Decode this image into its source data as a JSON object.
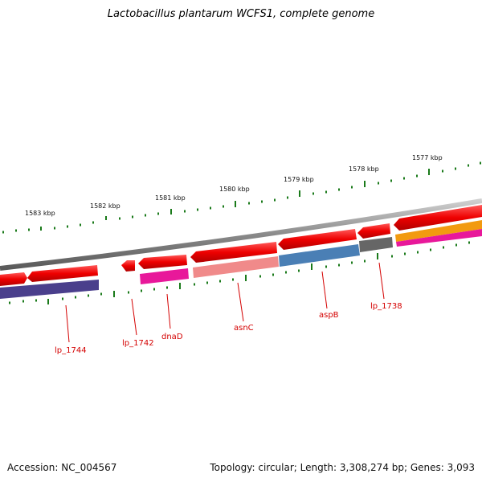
{
  "title": "Lactobacillus plantarum WCFS1, complete genome",
  "accession": "Accession: NC_004567",
  "topology": "Topology: circular; Length: 3,308,274 bp; Genes: 3,093",
  "kbp_labels": [
    "1583 kbp",
    "1582 kbp",
    "1581 kbp",
    "1580 kbp",
    "1579 kbp",
    "1578 kbp",
    "1577 kbp"
  ],
  "genes": [
    {
      "name": "lp_1744"
    },
    {
      "name": "lp_1742"
    },
    {
      "name": "dnaD"
    },
    {
      "name": "asnC"
    },
    {
      "name": "aspB"
    },
    {
      "name": "lp_1738"
    }
  ],
  "colors": {
    "cds": "#ee0000",
    "backbone": "#888888",
    "tick": "#1a7a1a",
    "label": "#d40000",
    "purple": "#4a3f8c",
    "magenta": "#e8189a",
    "pink": "#f08a8a",
    "blue": "#4a7fb5",
    "grey": "#666666",
    "orange": "#f29a10"
  }
}
